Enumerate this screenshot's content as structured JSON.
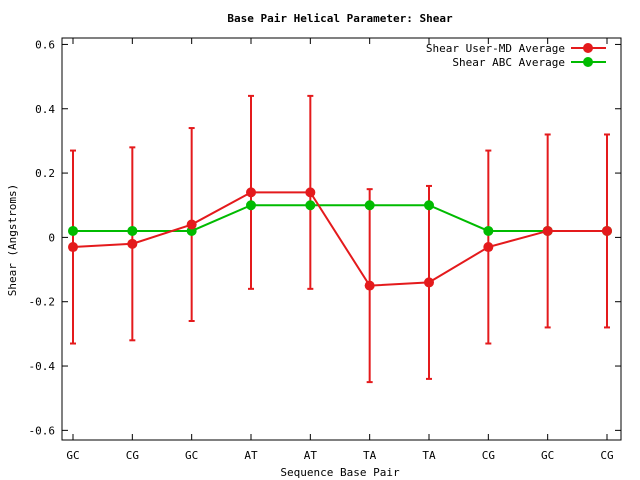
{
  "chart_data": {
    "type": "line",
    "title": "Base Pair Helical Parameter: Shear",
    "xlabel": "Sequence Base Pair",
    "ylabel": "Shear (Angstroms)",
    "ylim": [
      -0.63,
      0.62
    ],
    "yticks": [
      -0.6,
      -0.4,
      -0.2,
      0,
      0.2,
      0.4,
      0.6
    ],
    "ytick_labels": [
      "-0.6",
      "-0.4",
      "-0.2",
      "0",
      "0.2",
      "0.4",
      "0.6"
    ],
    "categories": [
      "GC",
      "CG",
      "GC",
      "AT",
      "AT",
      "TA",
      "TA",
      "CG",
      "GC",
      "CG"
    ],
    "legend_position": "top-right",
    "grid": false,
    "series": [
      {
        "name": "Shear User-MD Average",
        "color": "#e41a1c",
        "values": [
          -0.03,
          -0.02,
          0.04,
          0.14,
          0.14,
          -0.15,
          -0.14,
          -0.03,
          0.02,
          0.02
        ],
        "err_low": [
          -0.33,
          -0.32,
          -0.26,
          -0.16,
          -0.16,
          -0.45,
          -0.44,
          -0.33,
          -0.28,
          -0.28
        ],
        "err_high": [
          0.27,
          0.28,
          0.34,
          0.44,
          0.44,
          0.15,
          0.16,
          0.27,
          0.32,
          0.32
        ]
      },
      {
        "name": "Shear ABC Average",
        "color": "#00bb00",
        "values": [
          0.02,
          0.02,
          0.02,
          0.1,
          0.1,
          0.1,
          0.1,
          0.02,
          0.02,
          0.02
        ]
      }
    ]
  }
}
